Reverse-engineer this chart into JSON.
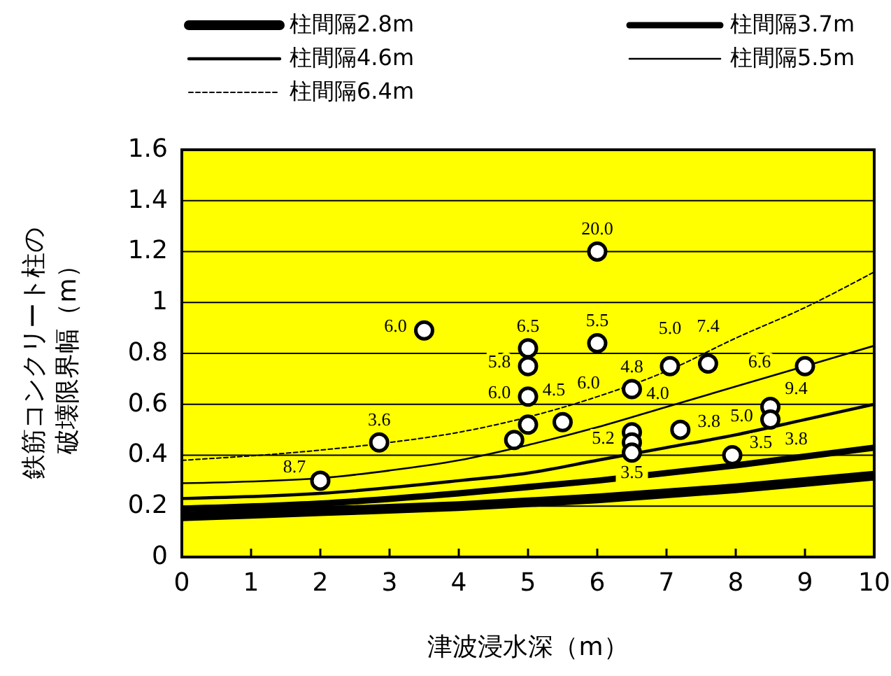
{
  "chart_data": {
    "type": "line",
    "xlabel": "津波浸水深（m）",
    "ylabel": "鉄筋コンクリート柱の破壊限界幅（m）",
    "xlim": [
      0,
      10
    ],
    "ylim": [
      0,
      1.6
    ],
    "xticks": [
      0,
      1,
      2,
      3,
      4,
      5,
      6,
      7,
      8,
      9,
      10
    ],
    "yticks": [
      0,
      0.2,
      0.4,
      0.6,
      0.8,
      1,
      1.2,
      1.4,
      1.6
    ],
    "grid": "y",
    "legend": "top",
    "series": [
      {
        "name": "柱間隔2.8m",
        "color": "#000000",
        "line_style": "solid",
        "marker": "none",
        "x": [
          0,
          2,
          4,
          6,
          8,
          10
        ],
        "values": [
          0.16,
          0.18,
          0.2,
          0.23,
          0.27,
          0.32
        ]
      },
      {
        "name": "柱間隔3.7m",
        "color": "#000000",
        "line_style": "solid",
        "marker": "none",
        "x": [
          0,
          2,
          4,
          6,
          8,
          10
        ],
        "values": [
          0.19,
          0.21,
          0.25,
          0.3,
          0.36,
          0.43
        ]
      },
      {
        "name": "柱間隔4.6m",
        "color": "#000000",
        "line_style": "solid",
        "marker": "none",
        "x": [
          0,
          2,
          4,
          5,
          6,
          7,
          8,
          9,
          10
        ],
        "values": [
          0.23,
          0.25,
          0.3,
          0.33,
          0.38,
          0.43,
          0.48,
          0.54,
          0.6
        ]
      },
      {
        "name": "柱間隔5.5m",
        "color": "#000000",
        "line_style": "solid",
        "marker": "none",
        "x": [
          0,
          2,
          3,
          4,
          5,
          6,
          7,
          8,
          9,
          10
        ],
        "values": [
          0.29,
          0.31,
          0.34,
          0.38,
          0.44,
          0.51,
          0.59,
          0.67,
          0.75,
          0.83
        ]
      },
      {
        "name": "柱間隔6.4m",
        "color": "#000000",
        "line_style": "dashed",
        "marker": "none",
        "x": [
          0,
          2,
          3,
          4,
          5,
          6,
          7,
          8,
          9,
          10
        ],
        "values": [
          0.38,
          0.42,
          0.45,
          0.49,
          0.55,
          0.63,
          0.73,
          0.86,
          0.98,
          1.12
        ]
      },
      {
        "type": "scatter",
        "color": "#ffffff",
        "marker": "circle",
        "x": [
          2,
          2.85,
          3.5,
          4.8,
          5,
          5,
          5,
          5,
          5.5,
          6,
          6,
          6.5,
          6.5,
          6.5,
          6.5,
          7.05,
          7.2,
          7.6,
          7.95,
          8.5,
          8.5,
          9
        ],
        "values": [
          0.3,
          0.45,
          0.89,
          0.46,
          0.82,
          0.75,
          0.63,
          0.52,
          0.53,
          0.84,
          1.2,
          0.66,
          0.49,
          0.45,
          0.41,
          0.75,
          0.5,
          0.76,
          0.4,
          0.59,
          0.54,
          0.75
        ]
      }
    ],
    "annotations": [
      {
        "text": "8.7",
        "x": 2,
        "y": 0.3
      },
      {
        "text": "3.6",
        "x": 2.85,
        "y": 0.45
      },
      {
        "text": "6.0",
        "x": 3.5,
        "y": 0.89
      },
      {
        "text": "6.5",
        "x": 5,
        "y": 0.82
      },
      {
        "text": "5.8",
        "x": 5,
        "y": 0.75
      },
      {
        "text": "6.0",
        "x": 5,
        "y": 0.63
      },
      {
        "text": "4.5",
        "x": 5,
        "y": 0.52
      },
      {
        "text": "6.0",
        "x": 5.5,
        "y": 0.53
      },
      {
        "text": "5.5",
        "x": 6,
        "y": 0.84
      },
      {
        "text": "20.0",
        "x": 6,
        "y": 1.2
      },
      {
        "text": "4.8",
        "x": 6.5,
        "y": 0.66
      },
      {
        "text": "4.0",
        "x": 6.5,
        "y": 0.49
      },
      {
        "text": "5.2",
        "x": 6.5,
        "y": 0.45
      },
      {
        "text": "3.5",
        "x": 6.5,
        "y": 0.41
      },
      {
        "text": "3.8",
        "x": 7.2,
        "y": 0.5
      },
      {
        "text": "5.0",
        "x": 7.05,
        "y": 0.75
      },
      {
        "text": "7.4",
        "x": 7.6,
        "y": 0.76
      },
      {
        "text": "3.5",
        "x": 7.95,
        "y": 0.4
      },
      {
        "text": "9.4",
        "x": 8.5,
        "y": 0.59
      },
      {
        "text": "3.8",
        "x": 8.5,
        "y": 0.59
      },
      {
        "text": "5.0",
        "x": 8.5,
        "y": 0.54
      },
      {
        "text": "6.6",
        "x": 9,
        "y": 0.75
      }
    ]
  }
}
